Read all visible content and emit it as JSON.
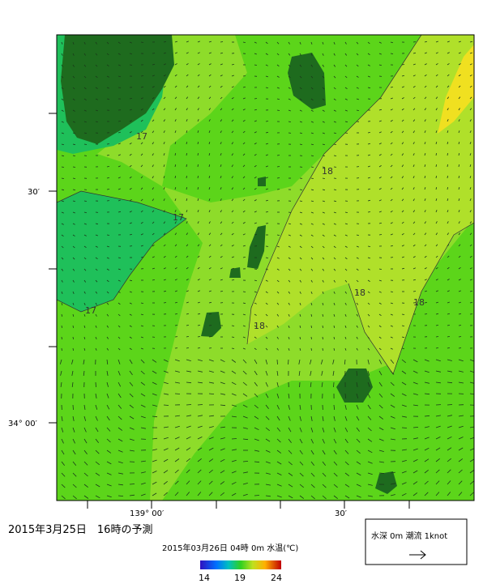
{
  "map": {
    "contour_labels": [
      "17",
      "17",
      "17",
      "18",
      "18",
      "18",
      "18"
    ],
    "lat_labels": [
      "30′",
      "34° 00′"
    ],
    "lon_labels": [
      "139° 00′",
      "30′"
    ]
  },
  "caption": "2015年3月25日　16時の予測",
  "colorbar": {
    "title": "2015年03月26日 04時 0m 水温(℃)",
    "ticks": [
      14,
      19,
      24
    ]
  },
  "legend": {
    "label": "水深 0m 潮流 1knot"
  }
}
